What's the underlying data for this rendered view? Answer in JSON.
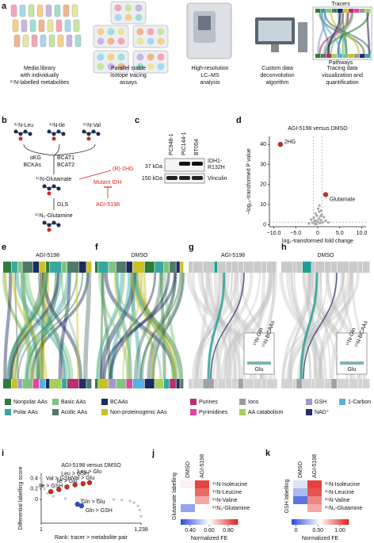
{
  "panel_labels": [
    "a",
    "b",
    "c",
    "d",
    "e",
    "f",
    "g",
    "h",
    "i",
    "j",
    "k"
  ],
  "workflow": {
    "steps": [
      [
        "Media library",
        "with individually",
        "¹⁵N-labelled metabolites"
      ],
      [
        "Parallel stable",
        "isotope tracing",
        "assays"
      ],
      [
        "High-resolution",
        "LC–MS",
        "analysis"
      ],
      [
        "Custom data",
        "deconvolution",
        "algorithm"
      ],
      [
        "Tracing data",
        "visualization and",
        "quantification"
      ]
    ],
    "tracers": "Tracers",
    "pathways": "Pathways"
  },
  "pathway": {
    "tracers": [
      "¹⁵N-Leu",
      "¹⁵N-Ile",
      "¹⁵N-Val"
    ],
    "akg": "αKG",
    "bckas": "BCKAs",
    "enzymes": [
      "BCAT1",
      "BCAT2"
    ],
    "glutamate": "¹⁵N-Glutamate",
    "gls": "GLS",
    "glutamine": "¹⁵N₂-Glutamine",
    "hg": "(R)-2HG",
    "idh": "Mutant IDH",
    "inhibitor": "AGI-5198"
  },
  "blot": {
    "lanes": [
      "PC948-1",
      "PIC144-1",
      "BT054"
    ],
    "markers": [
      "37 kDa",
      "150 kDa"
    ],
    "bands": [
      "IDH1-",
      "R132H",
      "Vinculin"
    ]
  },
  "sankey": {
    "titles": [
      "AGI-5198",
      "DMSO",
      "AGI-5198",
      "DMSO"
    ],
    "inset": [
      "¹⁵N-Gln",
      "¹⁵N-BCAAs",
      "Glu"
    ]
  },
  "legend": [
    {
      "name": "Nonpolar AAs",
      "color": "#2f7d3a"
    },
    {
      "name": "Polar AAs",
      "color": "#3aa6a0"
    },
    {
      "name": "Basic AAs",
      "color": "#7fc47f"
    },
    {
      "name": "Acidic AAs",
      "color": "#4f7a6a"
    },
    {
      "name": "BCAAs",
      "color": "#1c2b5e"
    },
    {
      "name": "Non-proteinogenic AAs",
      "color": "#c9c126"
    },
    {
      "name": "Purines",
      "color": "#b8306a"
    },
    {
      "name": "Pyrimidines",
      "color": "#e2479d"
    },
    {
      "name": "Ions",
      "color": "#9a9a9a"
    },
    {
      "name": "AA catabolism",
      "color": "#a6d05c"
    },
    {
      "name": "GSH",
      "color": "#a097d2"
    },
    {
      "name": "NAD⁺",
      "color": "#262b6b"
    },
    {
      "name": "1-Carbon",
      "color": "#55b3e3"
    }
  ],
  "chart_data": [
    {
      "type": "scatter",
      "title": "AGI-5198 versus DMSO",
      "x_label": "log₂-transformed fold change",
      "y_label": "−log₁₀-transformed P value",
      "xlim": [
        -11,
        11
      ],
      "ylim": [
        -1,
        44
      ],
      "xticks": [
        {
          "value": -10,
          "label": "−10.0"
        },
        {
          "value": -5,
          "label": "−5.0"
        },
        0,
        {
          "value": 5,
          "label": "5.0"
        },
        {
          "value": 10,
          "label": "10.0"
        }
      ],
      "yticks": [
        0,
        10,
        20,
        30,
        40
      ],
      "vlines": [
        -1,
        1
      ],
      "hline": 1.3,
      "point_color": "#a8a8a8",
      "points": {
        "x": [
          -1.5,
          -1.2,
          -0.9,
          -0.6,
          -0.4,
          -0.2,
          0,
          0.2,
          0.3,
          0.5,
          0.7,
          0.9,
          1.1,
          1.4,
          -0.3,
          0.1,
          0.6,
          -0.7,
          1.8,
          -2.0,
          2.4,
          0.4,
          -0.5,
          0.8
        ],
        "y": [
          2.5,
          1.0,
          3.5,
          0.5,
          2.0,
          4.5,
          1.5,
          3.0,
          6.5,
          0.8,
          2.2,
          5.0,
          1.2,
          3.8,
          0.3,
          8.0,
          4.2,
          1.8,
          2.0,
          0.6,
          1.1,
          9.5,
          5.5,
          7.0
        ]
      },
      "highlights": [
        {
          "label": "2HG",
          "x": -8.5,
          "y": 40,
          "color": "#d7261e"
        },
        {
          "label": "Glutamate",
          "x": 1.8,
          "y": 15,
          "color": "#d7261e"
        }
      ]
    },
    {
      "type": "scatter",
      "title": "AGI-5198 versus DMSO",
      "x_label": "Rank: tracer > metabolite pair",
      "y_label": "Differential labelling score",
      "xlim": [
        1,
        1238
      ],
      "ylim": [
        -0.45,
        0.5
      ],
      "xticks": [
        1,
        {
          "value": 1238,
          "label": "1,238"
        }
      ],
      "yticks": [
        0,
        0.2,
        0.4
      ],
      "point_color": "#c4c4c4",
      "points": {
        "x": [
          1,
          5,
          10,
          20,
          40,
          80,
          150,
          300,
          500,
          700,
          900,
          1000,
          1100,
          1150,
          1200,
          1220,
          1238
        ],
        "y": [
          0.42,
          0.38,
          0.33,
          0.27,
          0.2,
          0.12,
          0.06,
          0.02,
          0,
          0,
          0,
          -0.01,
          -0.03,
          -0.06,
          -0.12,
          -0.2,
          -0.32
        ]
      },
      "highlights": [
        {
          "label": "Ile > GSH",
          "x": 120,
          "y": 0.15,
          "color": "#d7261e"
        },
        {
          "label": "Val > GSH",
          "x": 220,
          "y": 0.19,
          "color": "#d7261e"
        },
        {
          "label": "Ile > Glu",
          "x": 320,
          "y": 0.24,
          "color": "#d7261e"
        },
        {
          "label": "Leu > GSH",
          "x": 420,
          "y": 0.28,
          "color": "#d7261e"
        },
        {
          "label": "Val > Glu",
          "x": 520,
          "y": 0.3,
          "color": "#d7261e"
        },
        {
          "label": "Leu > Glu",
          "x": 600,
          "y": 0.32,
          "color": "#d7261e"
        },
        {
          "label": "Gln > Glu",
          "x": 450,
          "y": -0.09,
          "color": "#2b4bd8"
        },
        {
          "label": "Gln > GSH",
          "x": 500,
          "y": -0.12,
          "color": "#2b4bd8"
        }
      ]
    },
    {
      "type": "heatmap",
      "y_label": "Glutamate labelling",
      "x_categories": [
        "DMSO",
        "AGI-5198"
      ],
      "y_categories": [
        "¹⁵N-Isoleucine",
        "¹⁵N-Leucine",
        "¹⁵N-Valine",
        "¹⁵N₂-Glutamine"
      ],
      "values": [
        [
          0.62,
          0.85
        ],
        [
          0.6,
          0.8
        ],
        [
          0.6,
          0.72
        ],
        [
          0.45,
          0.6
        ]
      ],
      "zlim": [
        0.3,
        0.9
      ],
      "colors": [
        "#2b4bd8",
        "#ffffff",
        "#e0201b"
      ],
      "cbar_ticks": [
        {
          "value": 0.4,
          "label": "0.40"
        },
        {
          "value": 0.6,
          "label": "0.60"
        },
        {
          "value": 0.8,
          "label": "0.80"
        }
      ],
      "cbar_label": "Normalized FE"
    },
    {
      "type": "heatmap",
      "y_label": "GSH labelling",
      "x_categories": [
        "DMSO",
        "AGI-5198"
      ],
      "y_categories": [
        "¹⁵N-Isoleucine",
        "¹⁵N-Leucine",
        "¹⁵N-Valine",
        "¹⁵N₂-Glutamine"
      ],
      "values": [
        [
          0.45,
          1.1
        ],
        [
          0.3,
          1.05
        ],
        [
          0.05,
          0.9
        ],
        [
          0.55,
          0.8
        ]
      ],
      "zlim": [
        -0.1,
        1.2
      ],
      "colors": [
        "#2b4bd8",
        "#ffffff",
        "#e0201b"
      ],
      "cbar_ticks": [
        0,
        {
          "value": 0.5,
          "label": "0.50"
        },
        {
          "value": 1,
          "label": "1.00"
        }
      ],
      "cbar_label": "Normalized FE"
    }
  ]
}
